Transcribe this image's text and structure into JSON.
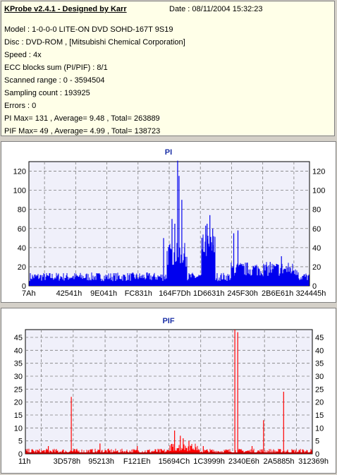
{
  "header": {
    "title": "KProbe v2.4.1 - Designed by Karr",
    "date": "Date : 08/11/2004 15:32:23"
  },
  "info_lines": [
    "Model : 1-0-0-0 LITE-ON DVD SOHD-167T    9S19",
    "Disc : DVD-ROM ,  [Mitsubishi Chemical Corporation]",
    "Speed : 4x",
    "ECC blocks sum (PI/PIF) : 8/1",
    "Scanned range : 0 - 3594504",
    "Sampling count : 193925",
    "Errors : 0",
    "PI Max= 131 , Average= 9.48 , Total= 263889",
    "PIF Max= 49 , Average= 4.99 , Total= 138723"
  ],
  "colors": {
    "pi_bar": "#0000ee",
    "pif_bar": "#ff0000",
    "pif_base": "#aa0000",
    "plot_bg": "#f0f0fa",
    "title": "#1a2fa6"
  },
  "chart_data": [
    {
      "type": "bar",
      "title": "PI",
      "xlabel": "",
      "ylabel": "",
      "ylim": [
        0,
        130
      ],
      "yticks": [
        "0",
        "20",
        "40",
        "60",
        "80",
        "100",
        "120"
      ],
      "xticks": [
        "7Ah",
        "42541h",
        "9E041h",
        "FC831h",
        "164F7Dh",
        "1D6631h",
        "245F30h",
        "2B6E61h",
        "324445h"
      ],
      "grid": true,
      "baseline_range": [
        5,
        14
      ],
      "spikes": [
        {
          "x": 0.48,
          "value": 50
        },
        {
          "x": 0.51,
          "value": 70
        },
        {
          "x": 0.52,
          "value": 65
        },
        {
          "x": 0.53,
          "value": 131
        },
        {
          "x": 0.535,
          "value": 115
        },
        {
          "x": 0.545,
          "value": 90
        },
        {
          "x": 0.555,
          "value": 40
        },
        {
          "x": 0.62,
          "value": 50
        },
        {
          "x": 0.63,
          "value": 63
        },
        {
          "x": 0.635,
          "value": 65
        },
        {
          "x": 0.645,
          "value": 74
        },
        {
          "x": 0.655,
          "value": 60
        },
        {
          "x": 0.73,
          "value": 55
        },
        {
          "x": 0.745,
          "value": 58
        },
        {
          "x": 0.86,
          "value": 25
        },
        {
          "x": 0.9,
          "value": 31
        },
        {
          "x": 0.93,
          "value": 20
        }
      ],
      "elevated_regions": [
        {
          "from": 0.49,
          "to": 0.565,
          "range": [
            20,
            45
          ]
        },
        {
          "from": 0.615,
          "to": 0.665,
          "range": [
            25,
            55
          ]
        },
        {
          "from": 0.72,
          "to": 0.96,
          "range": [
            10,
            25
          ]
        }
      ]
    },
    {
      "type": "bar",
      "title": "PIF",
      "xlabel": "",
      "ylabel": "",
      "ylim": [
        0,
        48
      ],
      "yticks": [
        "0",
        "5",
        "10",
        "15",
        "20",
        "25",
        "30",
        "35",
        "40",
        "45"
      ],
      "xticks": [
        "11h",
        "3D578h",
        "95213h",
        "F121Eh",
        "15694Ch",
        "1C3999h",
        "2340E6h",
        "2A5885h",
        "312369h"
      ],
      "grid": true,
      "baseline_range": [
        0,
        2
      ],
      "spikes": [
        {
          "x": 0.16,
          "value": 22
        },
        {
          "x": 0.73,
          "value": 48
        },
        {
          "x": 0.74,
          "value": 47
        },
        {
          "x": 0.83,
          "value": 13
        },
        {
          "x": 0.9,
          "value": 24
        },
        {
          "x": 0.52,
          "value": 9
        },
        {
          "x": 0.54,
          "value": 7
        },
        {
          "x": 0.55,
          "value": 6
        },
        {
          "x": 0.57,
          "value": 5
        },
        {
          "x": 0.26,
          "value": 4
        },
        {
          "x": 0.08,
          "value": 3
        },
        {
          "x": 0.39,
          "value": 3
        },
        {
          "x": 0.62,
          "value": 3
        },
        {
          "x": 0.79,
          "value": 3
        }
      ],
      "elevated_regions": [
        {
          "from": 0.5,
          "to": 0.6,
          "range": [
            1,
            4
          ]
        }
      ]
    }
  ]
}
